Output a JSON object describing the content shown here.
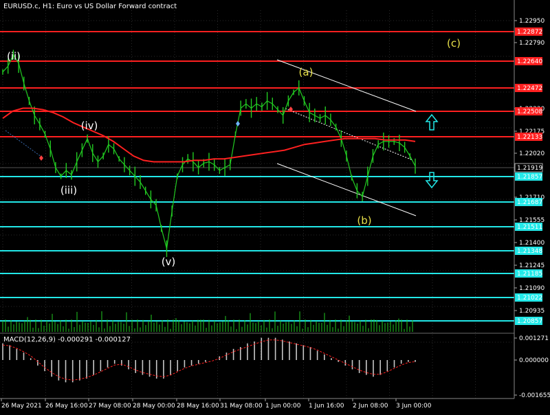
{
  "header": {
    "title": "EURUSD.c, H1:  Euro vs US Dollar Forward contract"
  },
  "macd": {
    "label": "MACD(12,26,9) -0.000291 -0.000127",
    "axis_labels": [
      "0.001271",
      "0.000000",
      "-0.001655"
    ]
  },
  "colors": {
    "background": "#000000",
    "candles": "#22cc22",
    "resistance": "#ff2020",
    "support": "#22e8e8",
    "moving_average": "#ff2020",
    "channel": "#ffffff",
    "wave_white": "#ffffff",
    "wave_yellow": "#e8e04a",
    "volume": "#22cc22",
    "macd_hist": "#c8c8c8",
    "macd_signal": "#ff2020"
  },
  "chart_data": {
    "type": "line",
    "symbol": "EURUSD.c",
    "timeframe": "H1",
    "price_axis_ticks": [
      "1.22950",
      "1.22790",
      "1.22330",
      "1.22175",
      "1.22020",
      "1.21710",
      "1.21555",
      "1.21400",
      "1.21245",
      "1.21090",
      "1.20935"
    ],
    "x_ticks": [
      "26 May 2021",
      "26 May 16:00",
      "27 May 08:00",
      "28 May 00:00",
      "28 May 16:00",
      "31 May 08:00",
      "1 Jun 00:00",
      "1 Jun 16:00",
      "2 Jun 08:00",
      "3 Jun 00:00"
    ],
    "current_price": "1.21919",
    "resistance_levels": [
      "1.22872",
      "1.22640",
      "1.22472",
      "1.22508",
      "1.22133"
    ],
    "support_levels": [
      "1.21857",
      "1.21687",
      "1.21511",
      "1.21348",
      "1.21185",
      "1.21022",
      "1.20857"
    ],
    "wave_labels": [
      {
        "label": "(ii)",
        "style": "white"
      },
      {
        "label": "(iii)",
        "style": "white"
      },
      {
        "label": "(iv)",
        "style": "white"
      },
      {
        "label": "(v)",
        "style": "white"
      },
      {
        "label": "(a)",
        "style": "yellow"
      },
      {
        "label": "(b)",
        "style": "yellow"
      },
      {
        "label": "(c)",
        "style": "yellow"
      }
    ],
    "arrows": [
      "up-arrow",
      "down-arrow"
    ],
    "price_series": [
      1.2258,
      1.2262,
      1.227,
      1.2264,
      1.225,
      1.2238,
      1.2228,
      1.2222,
      1.2215,
      1.2205,
      1.2192,
      1.2186,
      1.219,
      1.2187,
      1.2196,
      1.2204,
      1.2212,
      1.2202,
      1.2196,
      1.22,
      1.2208,
      1.2205,
      1.2198,
      1.2194,
      1.219,
      1.2186,
      1.2182,
      1.2176,
      1.217,
      1.2166,
      1.215,
      1.2136,
      1.2162,
      1.2186,
      1.2194,
      1.2198,
      1.2196,
      1.2192,
      1.2195,
      1.2196,
      1.2194,
      1.219,
      1.2192,
      1.2194,
      1.2215,
      1.2233,
      1.2236,
      1.2233,
      1.2236,
      1.2234,
      1.2238,
      1.2236,
      1.2232,
      1.2228,
      1.2238,
      1.2244,
      1.2247,
      1.2238,
      1.223,
      1.2228,
      1.2226,
      1.2228,
      1.2225,
      1.222,
      1.2212,
      1.22,
      1.2185,
      1.2176,
      1.2172,
      1.2186,
      1.22,
      1.2208,
      1.221,
      1.221,
      1.221,
      1.2209,
      1.2206,
      1.22,
      1.2193
    ],
    "moving_average": [
      1.2226,
      1.2231,
      1.2233,
      1.2233,
      1.2232,
      1.223,
      1.2227,
      1.2223,
      1.222,
      1.2217,
      1.2214,
      1.221,
      1.2205,
      1.22,
      1.2197,
      1.2196,
      1.2196,
      1.2196,
      1.2196,
      1.2197,
      1.2197,
      1.2198,
      1.2198,
      1.2199,
      1.22,
      1.2201,
      1.2202,
      1.2203,
      1.2204,
      1.2206,
      1.2208,
      1.2209,
      1.221,
      1.2211,
      1.2212,
      1.2212,
      1.2212,
      1.2212,
      1.2211,
      1.2211,
      1.2211,
      1.221
    ],
    "macd_histogram": [
      0.0009,
      0.0008,
      0.0006,
      0.0004,
      0.0001,
      -0.0003,
      -0.0006,
      -0.0009,
      -0.0011,
      -0.0012,
      -0.0012,
      -0.0011,
      -0.001,
      -0.0008,
      -0.0006,
      -0.0004,
      -0.0002,
      -0.0003,
      -0.0005,
      -0.0007,
      -0.0008,
      -0.0009,
      -0.001,
      -0.001,
      -0.0008,
      -0.0006,
      -0.0004,
      -0.0003,
      -0.0002,
      -0.0001,
      0.0,
      0.0002,
      0.0004,
      0.0006,
      0.0007,
      0.0009,
      0.001,
      0.0012,
      0.0012,
      0.0012,
      0.0011,
      0.001,
      0.0009,
      0.0008,
      0.0007,
      0.0005,
      0.0003,
      0.0001,
      -0.0001,
      -0.0003,
      -0.0005,
      -0.0007,
      -0.0008,
      -0.0009,
      -0.0008,
      -0.0006,
      -0.0004,
      -0.0002,
      -0.0001,
      -0.0001
    ]
  }
}
